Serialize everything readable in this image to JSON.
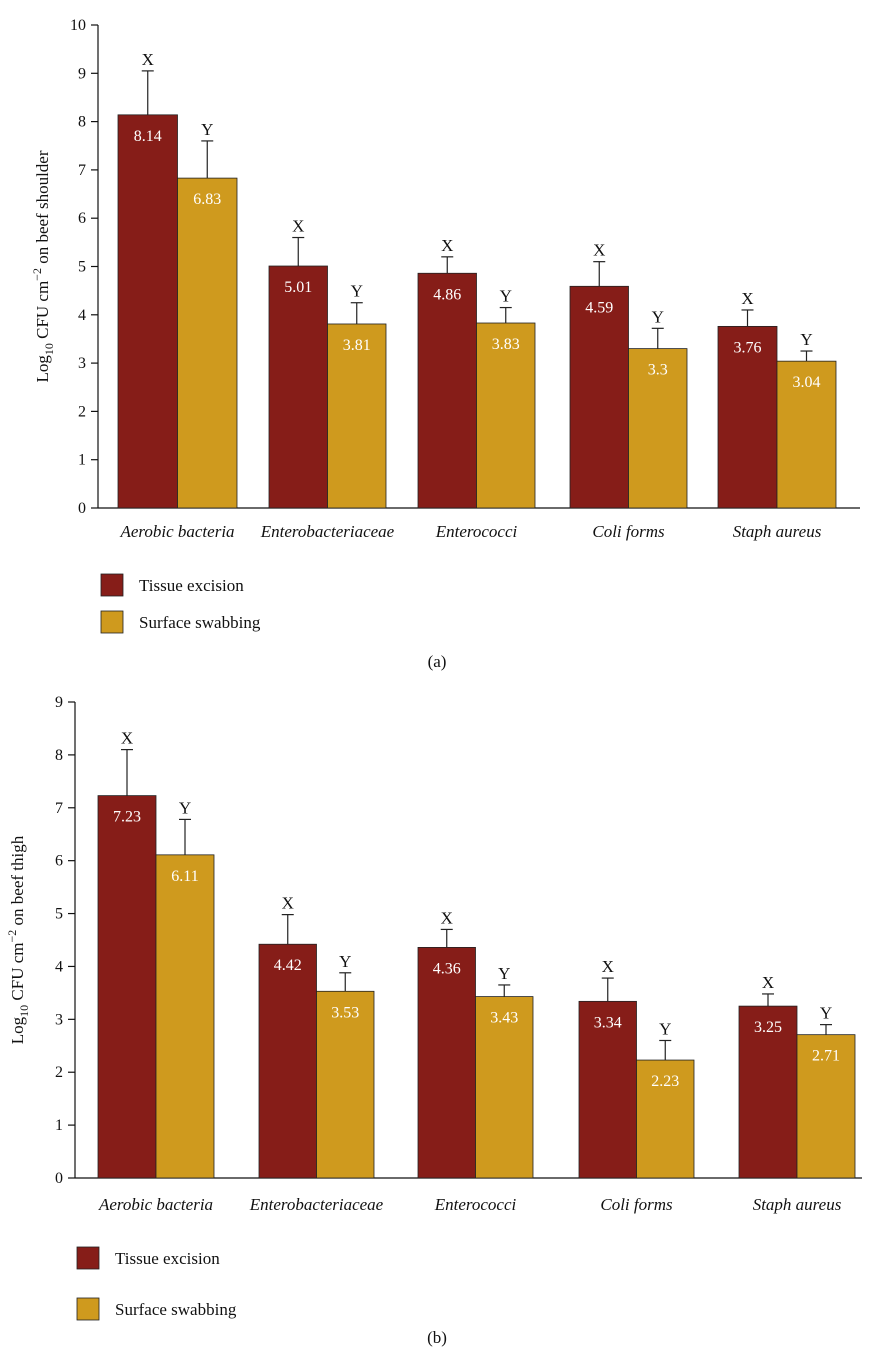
{
  "colors": {
    "tissue_excision": "#861d18",
    "surface_swabbing": "#cf9a1e"
  },
  "chart_data": [
    {
      "panel": "(a)",
      "type": "bar",
      "ylabel": {
        "prefix": "Log",
        "sub": "10",
        "mid": " CFU cm",
        "sup": "−2",
        "suffix": " on beef shoulder"
      },
      "ylim": [
        0,
        10
      ],
      "yticks": [
        "0",
        "1",
        "2",
        "3",
        "4",
        "5",
        "6",
        "7",
        "8",
        "9",
        "10"
      ],
      "categories": [
        "Aerobic bacteria",
        "Enterobacteriaceae",
        "Enterococci",
        "Coli forms",
        "Staph aureus"
      ],
      "series": [
        {
          "name": "Tissue excision",
          "values": [
            8.14,
            5.01,
            4.86,
            4.59,
            3.76
          ],
          "error_top": [
            9.05,
            5.6,
            5.2,
            5.1,
            4.1
          ],
          "sig": [
            "X",
            "X",
            "X",
            "X",
            "X"
          ]
        },
        {
          "name": "Surface swabbing",
          "values": [
            6.83,
            3.81,
            3.83,
            3.3,
            3.04
          ],
          "error_top": [
            7.6,
            4.25,
            4.15,
            3.72,
            3.25
          ],
          "sig": [
            "Y",
            "Y",
            "Y",
            "Y",
            "Y"
          ]
        }
      ],
      "value_labels": [
        [
          "8.14",
          "5.01",
          "4.86",
          "4.59",
          "3.76"
        ],
        [
          "6.83",
          "3.81",
          "3.83",
          "3.3",
          "3.04"
        ]
      ],
      "legend": [
        "Tissue excision",
        "Surface swabbing"
      ],
      "legend_position": "bottom-left",
      "grid": false
    },
    {
      "panel": "(b)",
      "type": "bar",
      "ylabel": {
        "prefix": "Log",
        "sub": "10",
        "mid": " CFU cm",
        "sup": "−2",
        "suffix": " on beef thigh"
      },
      "ylim": [
        0,
        9
      ],
      "yticks": [
        "0",
        "1",
        "2",
        "3",
        "4",
        "5",
        "6",
        "7",
        "8",
        "9"
      ],
      "categories": [
        "Aerobic bacteria",
        "Enterobacteriaceae",
        "Enterococci",
        "Coli forms",
        "Staph aureus"
      ],
      "series": [
        {
          "name": "Tissue excision",
          "values": [
            7.23,
            4.42,
            4.36,
            3.34,
            3.25
          ],
          "error_top": [
            8.1,
            4.98,
            4.7,
            3.78,
            3.48
          ],
          "sig": [
            "X",
            "X",
            "X",
            "X",
            "X"
          ]
        },
        {
          "name": "Surface swabbing",
          "values": [
            6.11,
            3.53,
            3.43,
            2.23,
            2.71
          ],
          "error_top": [
            6.78,
            3.88,
            3.65,
            2.6,
            2.9
          ],
          "sig": [
            "Y",
            "Y",
            "Y",
            "Y",
            "Y"
          ]
        }
      ],
      "value_labels": [
        [
          "7.23",
          "4.42",
          "4.36",
          "3.34",
          "3.25"
        ],
        [
          "6.11",
          "3.53",
          "3.43",
          "2.23",
          "2.71"
        ]
      ],
      "legend": [
        "Tissue excision",
        "Surface swabbing"
      ],
      "legend_position": "bottom-left",
      "grid": false
    }
  ]
}
